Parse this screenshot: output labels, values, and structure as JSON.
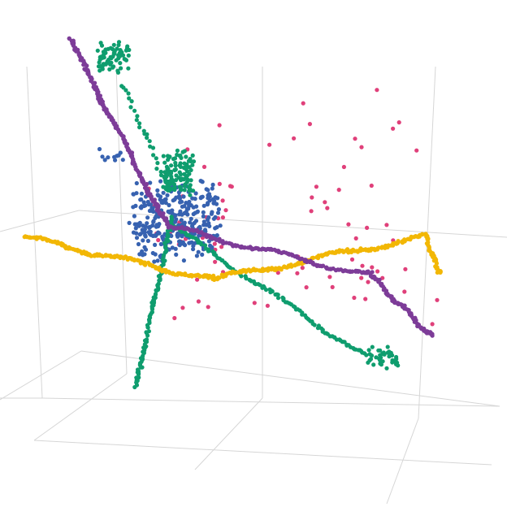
{
  "chart_data": {
    "type": "scatter",
    "projection": "3d",
    "title": "",
    "grid": true,
    "legend": "none",
    "series": [
      {
        "color": "#e0407a",
        "clusters": [
          {
            "x": [
              -0.3,
              0.9
            ],
            "y": [
              -0.2,
              0.9
            ],
            "z": [
              0.3,
              0.95
            ],
            "n": 16
          },
          {
            "x": [
              -0.4,
              0.6
            ],
            "y": [
              -0.6,
              0.0
            ],
            "z": [
              -0.5,
              0.2
            ],
            "n": 34
          },
          {
            "x": [
              0.4,
              0.9
            ],
            "y": [
              -0.5,
              0.2
            ],
            "z": [
              -0.6,
              -0.1
            ],
            "n": 14
          },
          {
            "x": [
              -0.5,
              -0.1
            ],
            "y": [
              -0.3,
              0.1
            ],
            "z": [
              -0.1,
              0.3
            ],
            "n": 16
          }
        ]
      },
      {
        "color": "#3762b0",
        "clusters": [
          {
            "x": [
              -0.55,
              -0.15
            ],
            "y": [
              -0.45,
              0.0
            ],
            "z": [
              -0.15,
              0.25
            ],
            "n": 320
          },
          {
            "x": [
              -0.7,
              -0.55
            ],
            "y": [
              -0.6,
              -0.4
            ],
            "z": [
              0.35,
              0.45
            ],
            "n": 10
          }
        ]
      },
      {
        "color": "#0f9d6e",
        "clusters": [
          {
            "x": [
              -0.45,
              -0.3
            ],
            "y": [
              -0.05,
              0.1
            ],
            "z": [
              0.3,
              0.55
            ],
            "n": 110
          },
          {
            "x": [
              -0.65,
              -0.5
            ],
            "y": [
              -0.85,
              -0.65
            ],
            "z": [
              0.85,
              1.0
            ],
            "n": 70
          },
          {
            "x": [
              0.45,
              0.6
            ],
            "y": [
              0.6,
              0.75
            ],
            "z": [
              -0.65,
              -0.55
            ],
            "n": 40
          }
        ],
        "paths": [
          {
            "from": [
              -0.55,
              -0.6,
              0.8
            ],
            "to": [
              -0.4,
              -0.05,
              0.3
            ],
            "n": 30
          },
          {
            "from": [
              -0.4,
              0.0,
              0.15
            ],
            "to": [
              -0.55,
              -0.2,
              -0.95
            ],
            "n": 110
          },
          {
            "from": [
              -0.4,
              0.0,
              0.1
            ],
            "to": [
              0.45,
              0.65,
              -0.6
            ],
            "n": 120
          }
        ]
      },
      {
        "color": "#f2b705",
        "paths": [
          {
            "from": [
              -1.0,
              -0.8,
              -0.15
            ],
            "to": [
              -0.2,
              0.0,
              -0.25
            ],
            "n": 170
          },
          {
            "from": [
              -0.2,
              0.0,
              -0.25
            ],
            "to": [
              0.75,
              0.6,
              0.1
            ],
            "n": 190
          },
          {
            "from": [
              0.75,
              0.6,
              0.1
            ],
            "to": [
              0.8,
              0.75,
              -0.1
            ],
            "n": 50
          }
        ]
      },
      {
        "color": "#7d3c98",
        "paths": [
          {
            "from": [
              -0.75,
              -0.95,
              1.0
            ],
            "to": [
              -0.4,
              -0.15,
              0.05
            ],
            "n": 190
          },
          {
            "from": [
              -0.4,
              -0.15,
              0.05
            ],
            "to": [
              0.5,
              0.5,
              -0.15
            ],
            "n": 160
          },
          {
            "from": [
              0.5,
              0.5,
              -0.15
            ],
            "to": [
              0.75,
              0.85,
              -0.45
            ],
            "n": 90
          }
        ]
      }
    ]
  }
}
